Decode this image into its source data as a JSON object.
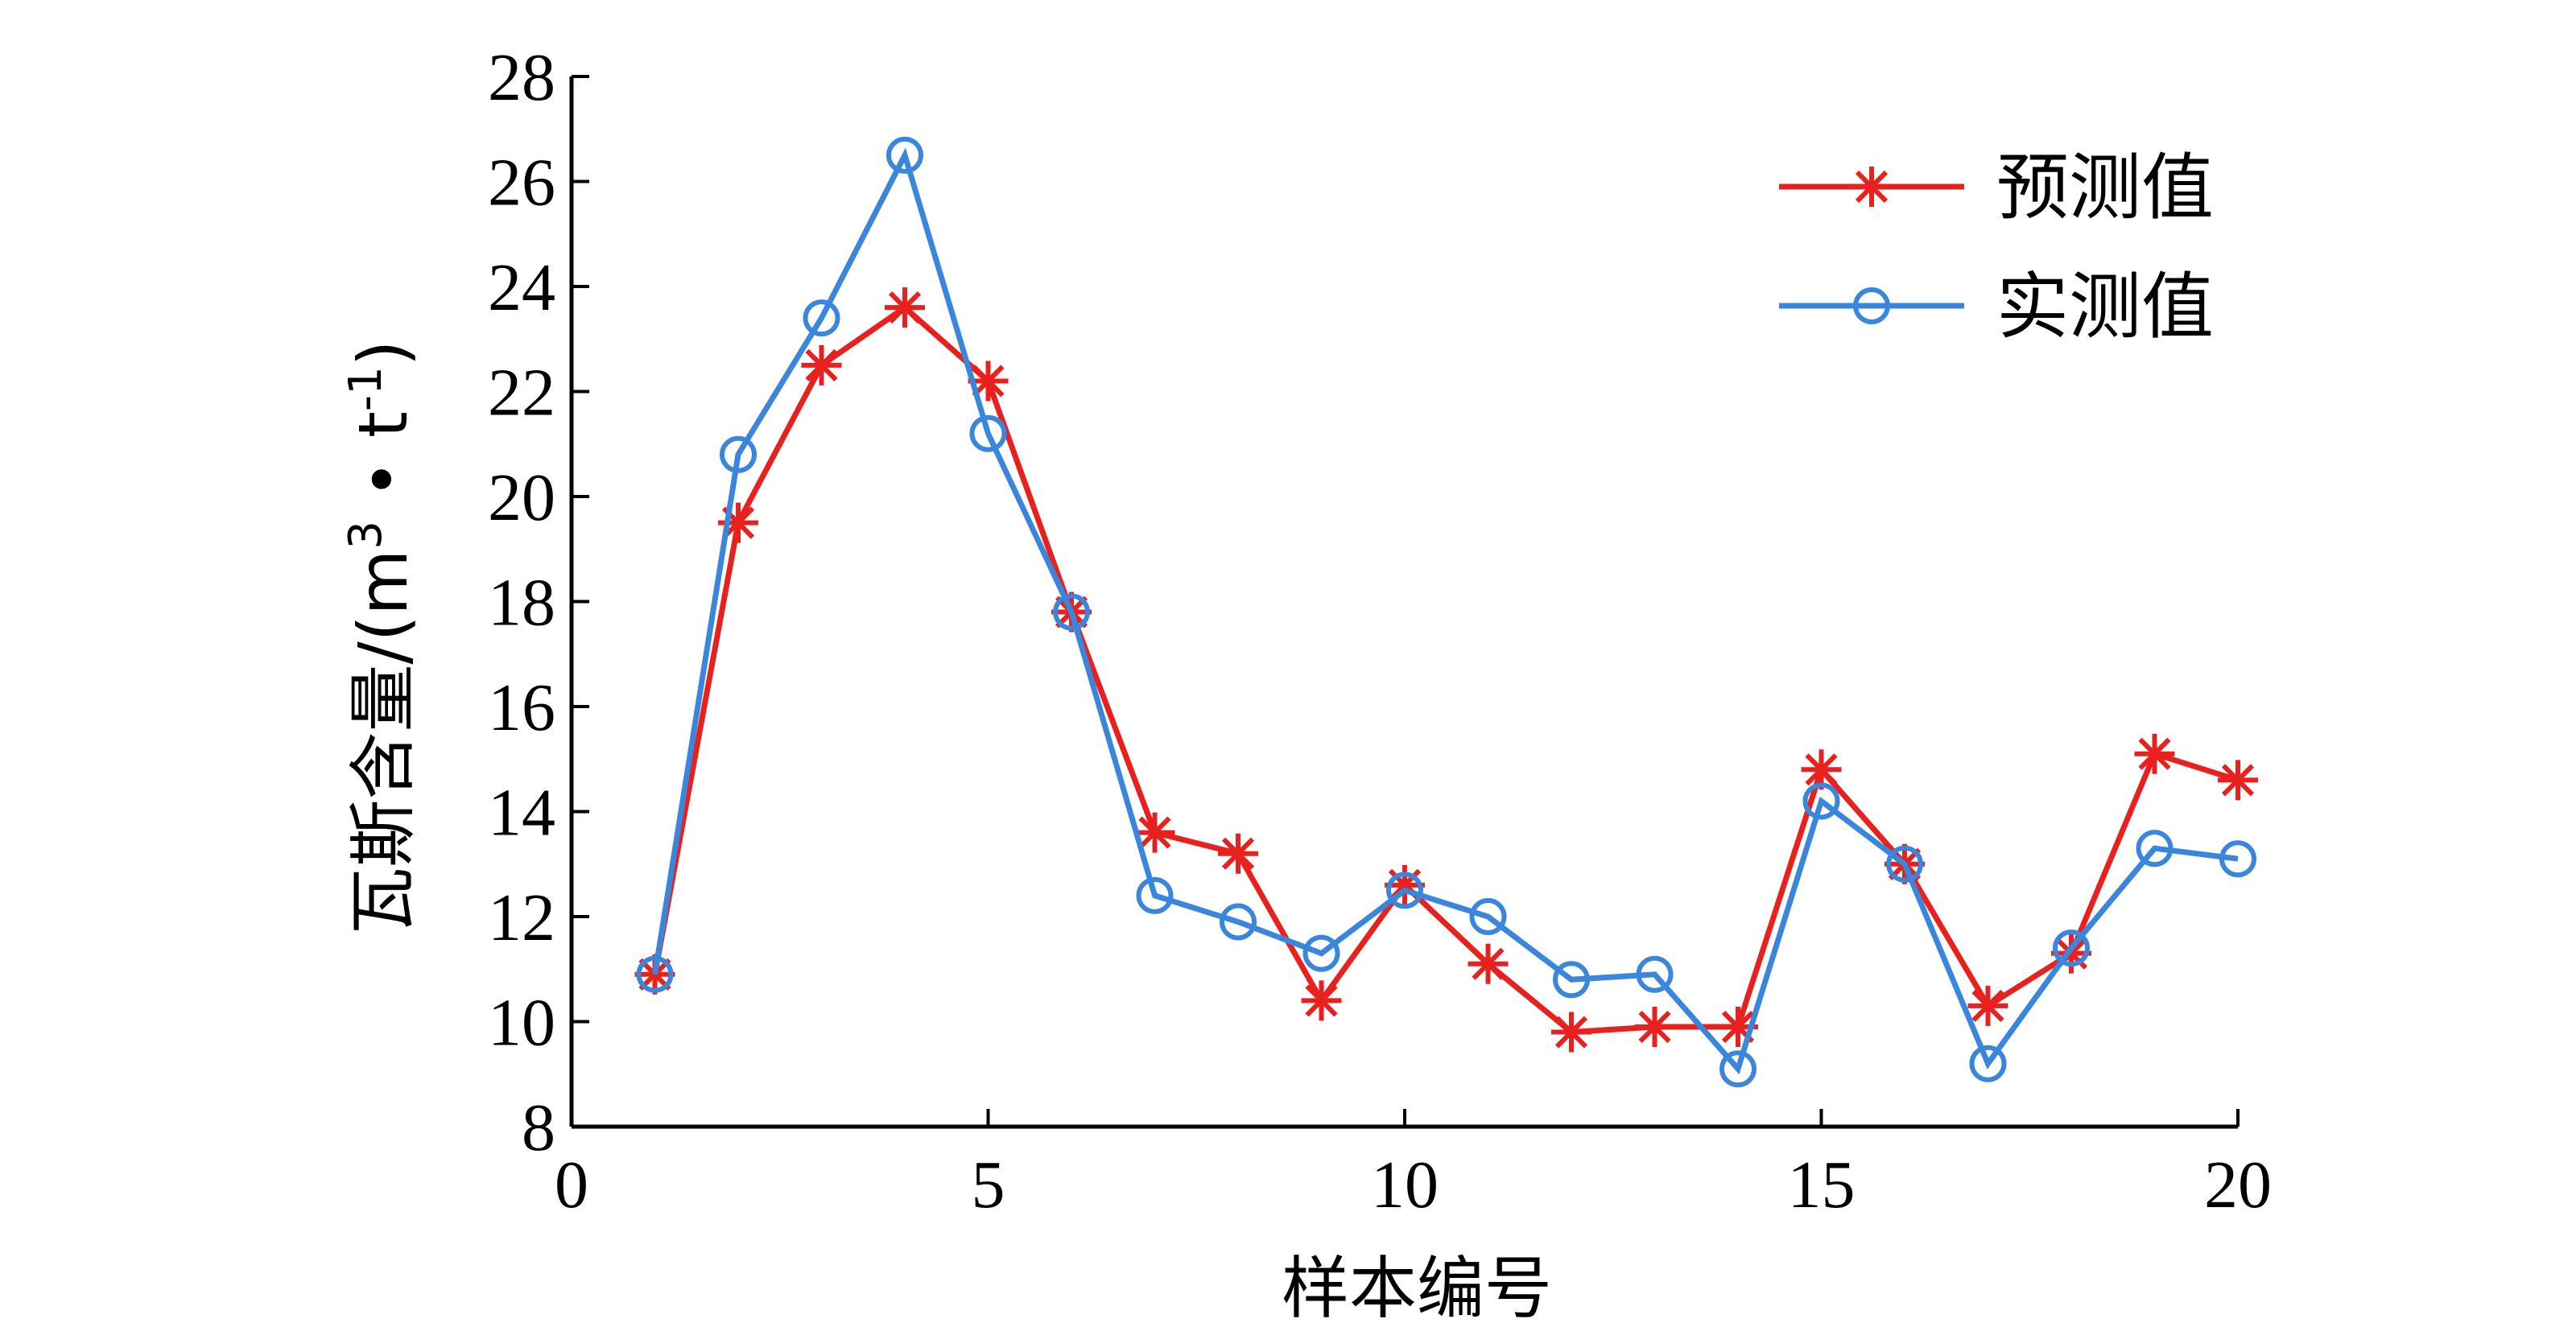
{
  "chart_data": {
    "type": "line",
    "xlabel": "样本编号",
    "ylabel": "瓦斯含量/(m",
    "ylabel_unit": {
      "sup1": "3",
      "dot": " • t",
      "sup2": "-1",
      "close": ")"
    },
    "xlim": [
      0,
      20
    ],
    "ylim": [
      8,
      28
    ],
    "xticks": [
      0,
      5,
      10,
      15,
      20
    ],
    "yticks": [
      8,
      10,
      12,
      14,
      16,
      18,
      20,
      22,
      24,
      26,
      28
    ],
    "grid": false,
    "legend_position": "top-right",
    "x": [
      1,
      2,
      3,
      4,
      5,
      6,
      7,
      8,
      9,
      10,
      11,
      12,
      13,
      14,
      15,
      16,
      17,
      18,
      19,
      20
    ],
    "series": [
      {
        "name": "预测值",
        "color": "#e8211e",
        "marker": "asterisk",
        "values": [
          10.9,
          19.5,
          22.5,
          23.6,
          22.2,
          17.8,
          13.6,
          13.2,
          10.4,
          12.6,
          11.1,
          9.8,
          9.9,
          9.9,
          14.8,
          13.0,
          10.3,
          11.3,
          15.1,
          14.6
        ]
      },
      {
        "name": "实测值",
        "color": "#3a86dc",
        "marker": "circle",
        "values": [
          10.9,
          20.8,
          23.4,
          26.5,
          21.2,
          17.8,
          12.4,
          11.9,
          11.3,
          12.5,
          12.0,
          10.8,
          10.9,
          9.1,
          14.2,
          13.0,
          9.2,
          11.4,
          13.3,
          13.1
        ]
      }
    ]
  }
}
